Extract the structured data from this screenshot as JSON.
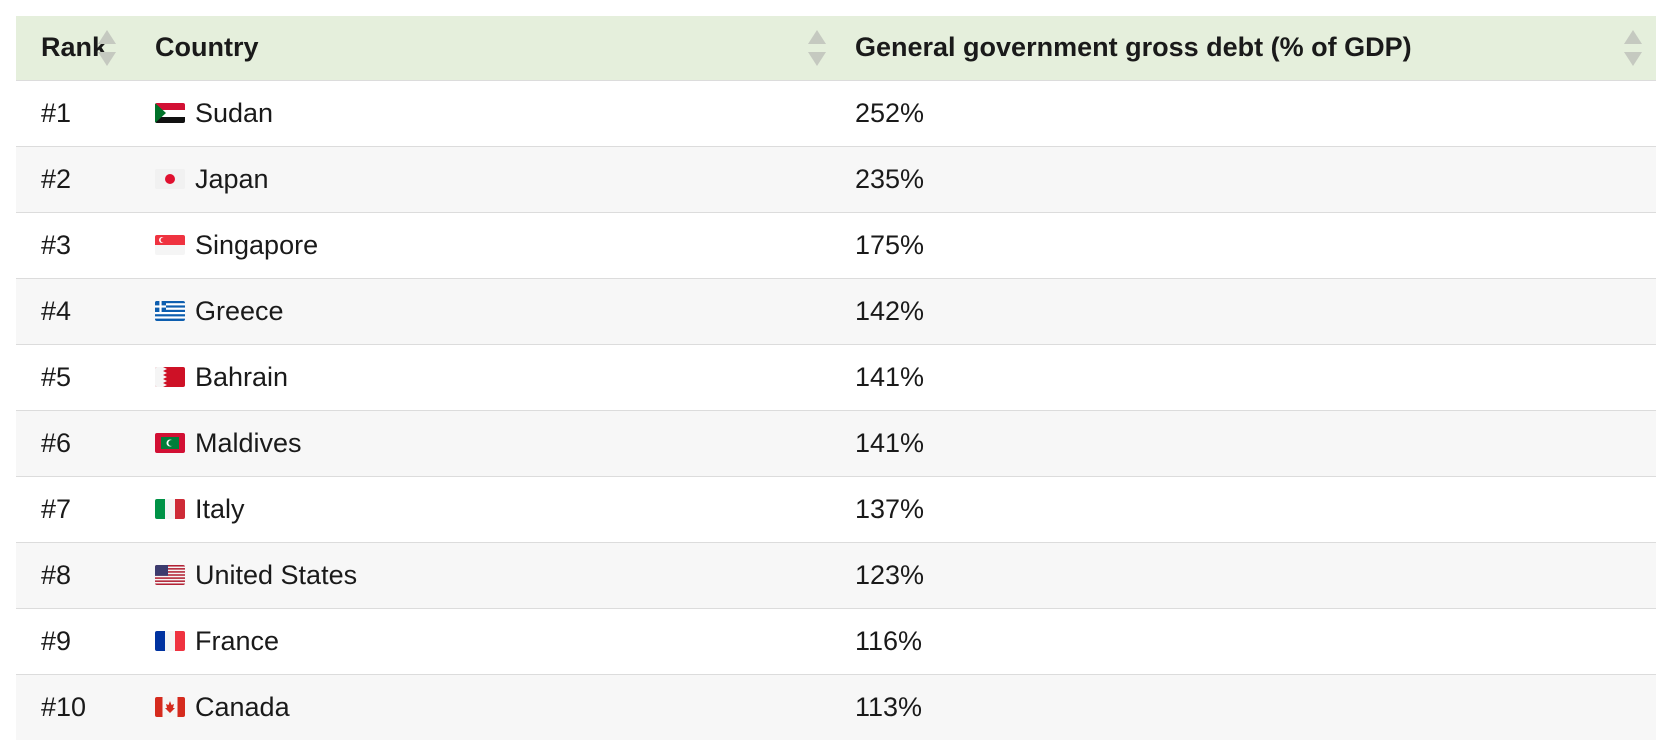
{
  "table": {
    "headers": {
      "rank": "Rank",
      "country": "Country",
      "debt": "General government gross debt (% of GDP)"
    },
    "rows": [
      {
        "rank": "#1",
        "country": "Sudan",
        "flag": "sudan-flag-icon",
        "debt": "252%"
      },
      {
        "rank": "#2",
        "country": "Japan",
        "flag": "japan-flag-icon",
        "debt": "235%"
      },
      {
        "rank": "#3",
        "country": "Singapore",
        "flag": "singapore-flag-icon",
        "debt": "175%"
      },
      {
        "rank": "#4",
        "country": "Greece",
        "flag": "greece-flag-icon",
        "debt": "142%"
      },
      {
        "rank": "#5",
        "country": "Bahrain",
        "flag": "bahrain-flag-icon",
        "debt": "141%"
      },
      {
        "rank": "#6",
        "country": "Maldives",
        "flag": "maldives-flag-icon",
        "debt": "141%"
      },
      {
        "rank": "#7",
        "country": "Italy",
        "flag": "italy-flag-icon",
        "debt": "137%"
      },
      {
        "rank": "#8",
        "country": "United States",
        "flag": "united-states-flag-icon",
        "debt": "123%"
      },
      {
        "rank": "#9",
        "country": "France",
        "flag": "france-flag-icon",
        "debt": "116%"
      },
      {
        "rank": "#10",
        "country": "Canada",
        "flag": "canada-flag-icon",
        "debt": "113%"
      }
    ]
  },
  "colors": {
    "header_bg": "#e5efdc",
    "row_alt_bg": "#f7f7f7",
    "sort_arrow": "#c5c9c0"
  }
}
